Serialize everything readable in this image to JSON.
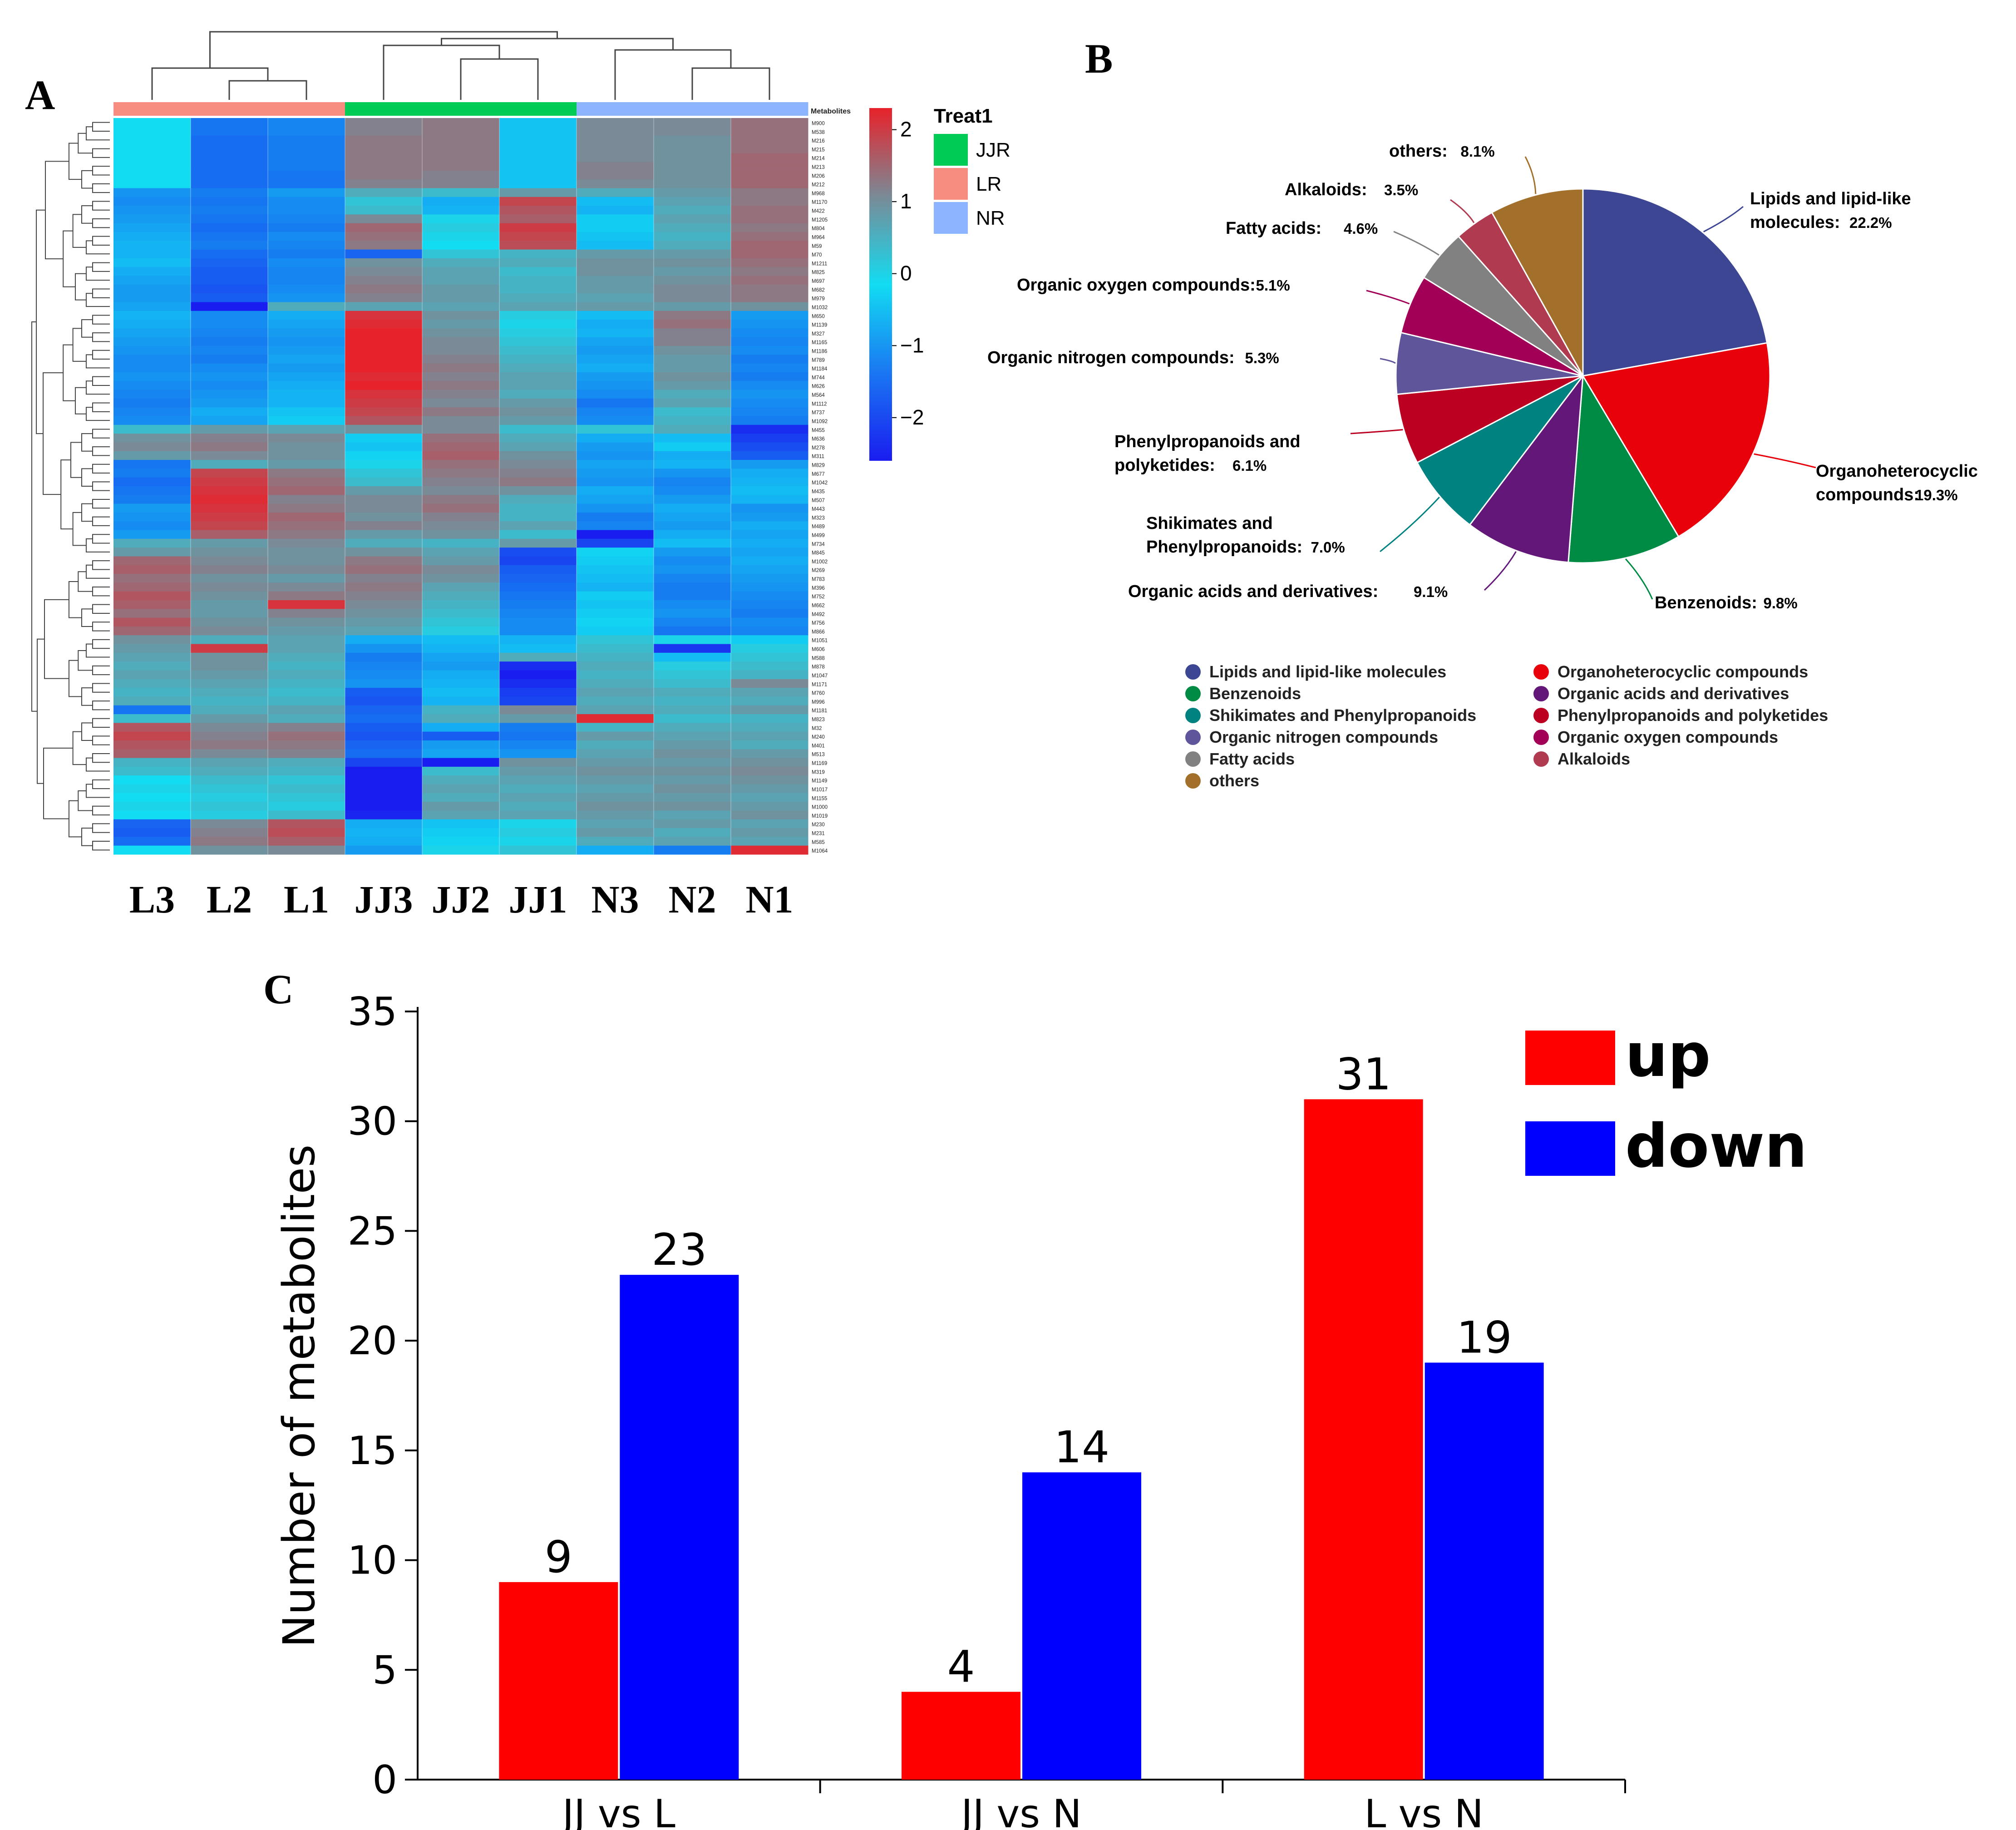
{
  "panels": {
    "a": "A",
    "b": "B",
    "c": "C"
  },
  "colors": {
    "heat_high": "#e8222a",
    "heat_mid": "#12dcf2",
    "heat_low": "#1a1df0",
    "group_JJR": "#00cc55",
    "group_LR": "#f78c80",
    "group_NR": "#8cb4ff",
    "bar_up": "#ff0000",
    "bar_down": "#0000ff"
  },
  "chart_data": [
    {
      "type": "heatmap",
      "title": "",
      "metabolites_header": "Metabolites",
      "samples": [
        "L3",
        "L2",
        "L1",
        "JJ3",
        "JJ2",
        "JJ1",
        "N3",
        "N2",
        "N1"
      ],
      "sample_groups": [
        "LR",
        "LR",
        "LR",
        "JJR",
        "JJR",
        "JJR",
        "NR",
        "NR",
        "NR"
      ],
      "rows": [
        "M900",
        "M538",
        "M216",
        "M215",
        "M214",
        "M213",
        "M206",
        "M212",
        "M968",
        "M1170",
        "M422",
        "M1205",
        "M804",
        "M964",
        "M59",
        "M70",
        "M1211",
        "M825",
        "M697",
        "M682",
        "M979",
        "M1032",
        "M650",
        "M1139",
        "M327",
        "M1165",
        "M1186",
        "M789",
        "M1184",
        "M744",
        "M626",
        "M564",
        "M1112",
        "M737",
        "M1092",
        "M455",
        "M636",
        "M278",
        "M311",
        "M829",
        "M677",
        "M1042",
        "M435",
        "M507",
        "M443",
        "M323",
        "M489",
        "M499",
        "M734",
        "M845",
        "M1002",
        "M269",
        "M783",
        "M396",
        "M752",
        "M662",
        "M492",
        "M756",
        "M866",
        "M1051",
        "M606",
        "M588",
        "M878",
        "M1047",
        "M1171",
        "M760",
        "M996",
        "M1181",
        "M823",
        "M32",
        "M240",
        "M401",
        "M513",
        "M1169",
        "M319",
        "M1149",
        "M1017",
        "M1155",
        "M1000",
        "M1019",
        "M230",
        "M231",
        "M585",
        "M1064"
      ],
      "values": [
        [
          0.0,
          -1.3,
          -1.1,
          1.1,
          1.2,
          -0.3,
          1.0,
          1.0,
          1.3
        ],
        [
          0.0,
          -1.3,
          -1.1,
          1.1,
          1.2,
          -0.3,
          1.0,
          1.0,
          1.3
        ],
        [
          0.0,
          -1.4,
          -1.2,
          1.2,
          1.2,
          -0.3,
          1.0,
          0.9,
          1.3
        ],
        [
          0.0,
          -1.4,
          -1.2,
          1.2,
          1.2,
          -0.3,
          1.0,
          0.9,
          1.3
        ],
        [
          0.0,
          -1.4,
          -1.2,
          1.2,
          1.2,
          -0.3,
          1.0,
          0.9,
          1.4
        ],
        [
          0.0,
          -1.4,
          -1.2,
          1.2,
          1.2,
          -0.3,
          1.1,
          0.9,
          1.4
        ],
        [
          0.0,
          -1.4,
          -1.3,
          1.2,
          1.1,
          -0.3,
          1.1,
          0.9,
          1.4
        ],
        [
          0.0,
          -1.4,
          -1.3,
          1.1,
          1.1,
          -0.3,
          1.0,
          0.9,
          1.4
        ],
        [
          -0.9,
          -1.2,
          -0.8,
          0.6,
          0.4,
          0.8,
          0.6,
          0.8,
          1.2
        ],
        [
          -1.0,
          -1.3,
          -1.0,
          0.3,
          -0.6,
          1.8,
          -0.4,
          0.7,
          1.2
        ],
        [
          -0.9,
          -1.2,
          -1.0,
          0.4,
          -0.5,
          1.6,
          -0.5,
          0.6,
          1.3
        ],
        [
          -0.8,
          -1.3,
          -1.1,
          1.0,
          0.1,
          1.5,
          -0.2,
          0.7,
          1.3
        ],
        [
          -0.7,
          -1.4,
          -1.2,
          1.4,
          0.2,
          1.9,
          -0.2,
          0.6,
          1.2
        ],
        [
          -0.6,
          -1.3,
          -1.0,
          1.3,
          0.1,
          1.8,
          -0.3,
          0.5,
          1.3
        ],
        [
          -0.5,
          -1.2,
          -1.1,
          1.2,
          0.0,
          1.7,
          -0.4,
          0.6,
          1.4
        ],
        [
          -0.5,
          -1.4,
          -1.2,
          -1.5,
          0.3,
          0.5,
          0.8,
          0.8,
          1.4
        ],
        [
          -0.4,
          -1.5,
          -1.0,
          0.9,
          0.6,
          0.6,
          0.9,
          0.9,
          1.3
        ],
        [
          -0.6,
          -1.6,
          -1.1,
          1.0,
          0.7,
          0.4,
          0.9,
          0.8,
          1.2
        ],
        [
          -0.7,
          -1.6,
          -1.1,
          1.1,
          0.7,
          0.5,
          0.8,
          0.9,
          1.3
        ],
        [
          -0.8,
          -1.7,
          -1.0,
          1.2,
          0.8,
          0.5,
          0.8,
          1.0,
          1.2
        ],
        [
          -0.8,
          -1.6,
          -0.9,
          1.1,
          0.8,
          0.6,
          0.7,
          1.0,
          1.2
        ],
        [
          -0.7,
          -2.5,
          0.6,
          0.7,
          0.7,
          0.7,
          0.8,
          0.8,
          0.9
        ],
        [
          -0.5,
          -1.0,
          -0.6,
          2.0,
          0.9,
          0.2,
          -0.4,
          1.2,
          -0.8
        ],
        [
          -0.6,
          -1.0,
          -0.7,
          2.1,
          0.8,
          0.1,
          -0.6,
          1.3,
          -0.9
        ],
        [
          -0.7,
          -1.1,
          -0.8,
          2.2,
          0.9,
          0.2,
          -0.5,
          1.1,
          -1.0
        ],
        [
          -0.8,
          -1.2,
          -0.9,
          2.2,
          1.0,
          0.3,
          -0.7,
          1.1,
          -1.1
        ],
        [
          -0.9,
          -1.1,
          -0.8,
          2.3,
          1.0,
          0.4,
          -0.8,
          0.9,
          -1.0
        ],
        [
          -1.0,
          -1.2,
          -0.7,
          2.3,
          1.1,
          0.5,
          -0.7,
          0.8,
          -1.2
        ],
        [
          -1.0,
          -1.0,
          -0.8,
          2.2,
          1.2,
          0.6,
          -0.6,
          0.8,
          -1.1
        ],
        [
          -0.9,
          -0.9,
          -0.7,
          2.1,
          1.1,
          0.7,
          -0.8,
          0.9,
          -1.2
        ],
        [
          -1.0,
          -1.0,
          -0.6,
          2.2,
          1.2,
          0.7,
          -0.9,
          0.8,
          -1.0
        ],
        [
          -1.1,
          -0.9,
          -0.5,
          2.0,
          1.1,
          0.6,
          -1.0,
          0.6,
          -0.9
        ],
        [
          -1.2,
          -0.8,
          -0.5,
          1.9,
          1.0,
          0.8,
          -1.3,
          0.7,
          -1.0
        ],
        [
          -1.1,
          -0.6,
          -0.3,
          1.8,
          1.2,
          0.9,
          -1.1,
          0.4,
          -1.1
        ],
        [
          -1.0,
          -0.7,
          -0.2,
          1.6,
          1.0,
          0.8,
          -1.0,
          0.5,
          -1.2
        ],
        [
          0.4,
          0.8,
          0.7,
          0.9,
          1.0,
          0.4,
          0.3,
          0.6,
          -2.2
        ],
        [
          0.9,
          1.1,
          1.0,
          -0.2,
          1.3,
          0.6,
          -0.6,
          -0.4,
          -2.0
        ],
        [
          1.0,
          1.2,
          0.9,
          -0.3,
          1.4,
          0.7,
          -0.8,
          -0.2,
          -1.8
        ],
        [
          0.8,
          1.0,
          0.9,
          -0.1,
          1.5,
          0.9,
          -0.9,
          -0.6,
          -1.6
        ],
        [
          -1.3,
          0.6,
          0.8,
          0.1,
          1.3,
          1.0,
          -0.7,
          -0.5,
          -0.8
        ],
        [
          -1.2,
          1.8,
          1.2,
          0.3,
          1.2,
          1.1,
          -0.8,
          -0.9,
          -0.6
        ],
        [
          -1.4,
          1.9,
          1.3,
          0.4,
          1.1,
          1.2,
          -0.9,
          -1.1,
          -0.5
        ],
        [
          -1.3,
          2.0,
          1.4,
          0.8,
          1.0,
          0.9,
          -0.6,
          -1.0,
          -0.4
        ],
        [
          -1.2,
          2.1,
          1.1,
          1.0,
          1.2,
          0.6,
          -0.7,
          -0.8,
          -0.5
        ],
        [
          -0.8,
          2.0,
          1.2,
          1.0,
          1.3,
          0.5,
          -0.9,
          -0.6,
          -0.9
        ],
        [
          -0.9,
          1.9,
          1.4,
          0.9,
          1.1,
          0.5,
          -1.2,
          -0.7,
          -0.8
        ],
        [
          -1.0,
          1.8,
          1.3,
          1.1,
          1.0,
          0.7,
          -1.1,
          -0.8,
          -0.6
        ],
        [
          -0.8,
          1.5,
          1.2,
          0.8,
          0.9,
          0.4,
          -2.4,
          -0.6,
          -0.7
        ],
        [
          0.6,
          0.8,
          1.0,
          0.6,
          0.5,
          0.8,
          -1.9,
          -0.4,
          -0.6
        ],
        [
          0.8,
          0.9,
          0.9,
          0.9,
          0.7,
          -1.8,
          -0.1,
          -0.8,
          -0.7
        ],
        [
          1.4,
          1.0,
          0.9,
          1.2,
          0.8,
          -1.9,
          -0.2,
          -1.0,
          -0.6
        ],
        [
          1.5,
          1.1,
          1.0,
          1.3,
          1.0,
          -1.6,
          -0.3,
          -0.9,
          -0.7
        ],
        [
          1.3,
          0.9,
          0.8,
          1.1,
          0.9,
          -1.5,
          -0.4,
          -1.1,
          -0.8
        ],
        [
          1.4,
          1.0,
          1.0,
          1.2,
          0.7,
          -1.4,
          -0.5,
          -1.2,
          -0.9
        ],
        [
          1.6,
          0.9,
          1.2,
          1.1,
          0.6,
          -1.3,
          -0.2,
          -1.2,
          -1.0
        ],
        [
          1.5,
          0.8,
          2.0,
          1.0,
          0.5,
          -1.2,
          -0.3,
          -1.0,
          -1.1
        ],
        [
          1.3,
          0.8,
          1.1,
          0.9,
          0.4,
          -1.1,
          -0.2,
          -0.9,
          -1.2
        ],
        [
          1.6,
          0.9,
          0.9,
          0.8,
          0.3,
          -1.0,
          -0.1,
          -1.1,
          -1.0
        ],
        [
          1.4,
          1.0,
          0.8,
          0.7,
          0.2,
          -1.0,
          -0.2,
          -1.3,
          -1.1
        ],
        [
          0.9,
          0.6,
          0.7,
          -0.6,
          -0.4,
          -0.5,
          0.3,
          0.1,
          -0.2
        ],
        [
          0.8,
          1.9,
          0.7,
          -0.9,
          -0.5,
          -0.4,
          0.4,
          -2.1,
          0.2
        ],
        [
          0.7,
          0.9,
          0.6,
          -1.2,
          -0.7,
          0.6,
          0.5,
          -0.4,
          0.3
        ],
        [
          0.6,
          0.9,
          0.5,
          -1.1,
          -0.8,
          -2.2,
          0.6,
          0.2,
          0.4
        ],
        [
          0.7,
          0.8,
          0.6,
          -1.0,
          -0.6,
          -2.4,
          0.5,
          0.3,
          0.5
        ],
        [
          0.6,
          0.7,
          0.5,
          -0.9,
          -0.5,
          -2.2,
          0.6,
          0.4,
          1.0
        ],
        [
          0.5,
          0.6,
          0.4,
          -1.6,
          -0.4,
          -2.0,
          0.7,
          0.6,
          0.7
        ],
        [
          0.6,
          0.5,
          0.5,
          -1.7,
          -0.5,
          -1.9,
          0.6,
          0.5,
          0.6
        ],
        [
          -1.3,
          0.6,
          0.7,
          -1.5,
          0.5,
          1.0,
          0.7,
          0.6,
          0.8
        ],
        [
          0.4,
          0.8,
          0.6,
          -1.4,
          0.6,
          0.8,
          2.1,
          0.4,
          0.5
        ],
        [
          1.6,
          1.0,
          1.1,
          -1.6,
          -0.6,
          -1.2,
          0.5,
          0.6,
          0.6
        ],
        [
          1.8,
          1.1,
          1.3,
          -1.7,
          -1.6,
          -1.3,
          0.8,
          0.7,
          0.7
        ],
        [
          1.6,
          1.2,
          1.2,
          -1.5,
          -0.8,
          -1.1,
          0.6,
          0.8,
          0.6
        ],
        [
          1.5,
          1.0,
          1.1,
          -1.4,
          -0.7,
          -0.9,
          0.7,
          0.9,
          0.8
        ],
        [
          0.5,
          0.7,
          0.6,
          -1.9,
          -2.4,
          0.9,
          0.8,
          0.8,
          0.9
        ],
        [
          0.4,
          0.6,
          0.5,
          -2.5,
          0.4,
          0.8,
          0.9,
          0.9,
          1.0
        ],
        [
          0.0,
          0.4,
          0.3,
          -2.6,
          0.6,
          0.7,
          0.8,
          0.8,
          0.9
        ],
        [
          0.1,
          0.3,
          0.4,
          -2.6,
          0.7,
          0.6,
          0.7,
          0.9,
          0.8
        ],
        [
          0.0,
          0.2,
          0.3,
          -2.5,
          0.6,
          0.7,
          0.8,
          0.8,
          0.7
        ],
        [
          0.1,
          0.3,
          0.2,
          -2.4,
          0.8,
          0.6,
          0.9,
          0.9,
          0.8
        ],
        [
          0.0,
          0.2,
          0.4,
          -2.3,
          0.7,
          0.7,
          0.8,
          0.7,
          0.9
        ],
        [
          -1.5,
          1.0,
          1.6,
          -0.6,
          -0.3,
          0.1,
          0.7,
          0.8,
          0.7
        ],
        [
          -1.6,
          1.1,
          1.7,
          -0.5,
          -0.2,
          0.2,
          0.8,
          0.6,
          0.8
        ],
        [
          -1.4,
          1.2,
          1.5,
          -0.6,
          -0.1,
          0.1,
          0.6,
          0.7,
          0.7
        ],
        [
          0.0,
          0.9,
          1.0,
          -0.8,
          0.1,
          0.3,
          -0.6,
          -1.2,
          2.1
        ]
      ],
      "color_scale": {
        "ticks": [
          "2",
          "1",
          "0",
          "−1",
          "−2"
        ],
        "min": -2.6,
        "max": 2.3
      },
      "legend": {
        "title": "Treat1",
        "items": [
          "JJR",
          "LR",
          "NR"
        ]
      }
    },
    {
      "type": "pie",
      "slices": [
        {
          "label": "Lipids and lipid-like molecules",
          "label_lines": [
            "Lipids and lipid-like",
            "molecules:"
          ],
          "pct_text": "22.2%",
          "value": 22.2,
          "color": "#3c4692"
        },
        {
          "label": "Organoheterocyclic compounds",
          "label_lines": [
            "Organoheterocyclic",
            "compounds:"
          ],
          "pct_text": "19.3%",
          "value": 19.3,
          "color": "#e8000b"
        },
        {
          "label": "Benzenoids",
          "label_lines": [
            "Benzenoids:"
          ],
          "pct_text": "9.8%",
          "value": 9.8,
          "color": "#008b45"
        },
        {
          "label": "Organic acids and derivatives",
          "label_lines": [
            "Organic acids and derivatives:"
          ],
          "pct_text": "9.1%",
          "value": 9.1,
          "color": "#631879"
        },
        {
          "label": "Shikimates and Phenylpropanoids",
          "label_lines": [
            "Shikimates and",
            "Phenylpropanoids:"
          ],
          "pct_text": "7.0%",
          "value": 7.0,
          "color": "#008280"
        },
        {
          "label": "Phenylpropanoids and polyketides",
          "label_lines": [
            "Phenylpropanoids and",
            "polyketides:"
          ],
          "pct_text": "6.1%",
          "value": 6.1,
          "color": "#bb0021"
        },
        {
          "label": "Organic nitrogen compounds",
          "label_lines": [
            "Organic nitrogen compounds:"
          ],
          "pct_text": "5.3%",
          "value": 5.3,
          "color": "#5f559b"
        },
        {
          "label": "Organic oxygen compounds",
          "label_lines": [
            "Organic oxygen compounds:"
          ],
          "pct_text": "5.1%",
          "value": 5.1,
          "color": "#a20056"
        },
        {
          "label": "Fatty acids",
          "label_lines": [
            "Fatty acids:"
          ],
          "pct_text": "4.6%",
          "value": 4.6,
          "color": "#808180"
        },
        {
          "label": "Alkaloids",
          "label_lines": [
            "Alkaloids:"
          ],
          "pct_text": "3.5%",
          "value": 3.5,
          "color": "#b03a50"
        },
        {
          "label": "others",
          "label_lines": [
            "others:"
          ],
          "pct_text": "8.1%",
          "value": 8.1,
          "color": "#a2702a"
        }
      ],
      "legend_order": [
        "Lipids and lipid-like molecules",
        "Organoheterocyclic compounds",
        "Benzenoids",
        "Organic acids and derivatives",
        "Shikimates and Phenylpropanoids",
        "Phenylpropanoids and polyketides",
        "Organic nitrogen compounds",
        "Organic oxygen compounds",
        "Fatty acids",
        "Alkaloids",
        "others"
      ]
    },
    {
      "type": "bar",
      "categories": [
        "JJ vs L",
        "JJ vs N",
        "L vs N"
      ],
      "series": [
        {
          "name": "up",
          "values": [
            9,
            4,
            31
          ]
        },
        {
          "name": "down",
          "values": [
            23,
            14,
            19
          ]
        }
      ],
      "title": "",
      "xlabel": "",
      "ylabel": "Number of metabolites",
      "ylim": [
        0,
        35
      ],
      "yticks": [
        0,
        5,
        10,
        15,
        20,
        25,
        30,
        35
      ]
    }
  ]
}
